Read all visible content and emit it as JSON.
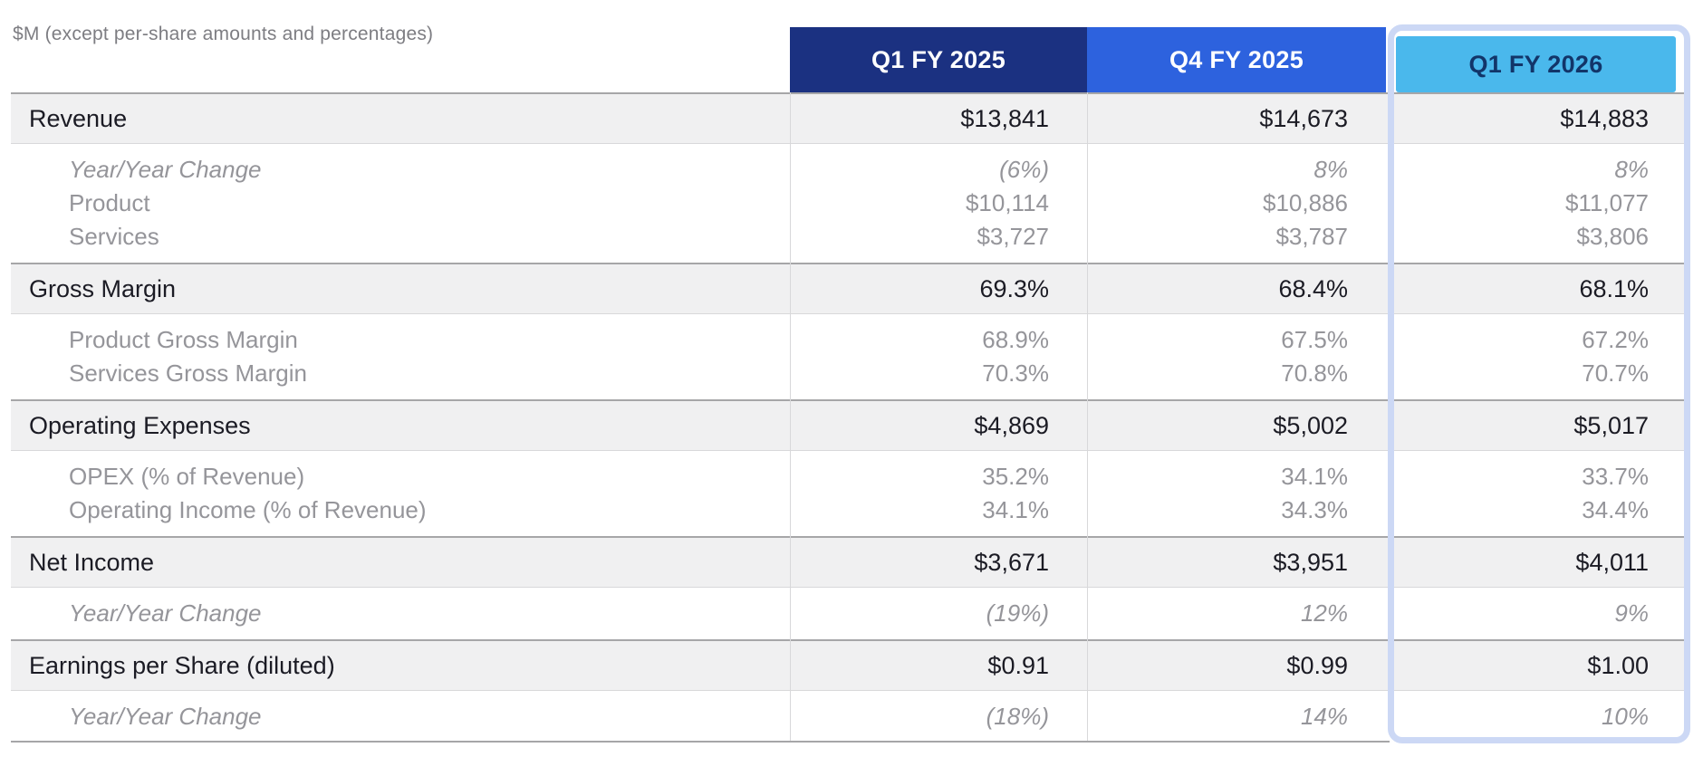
{
  "chart_data": {
    "type": "table",
    "units_note": "$M (except per-share amounts and percentages)",
    "legend_position": "none",
    "highlighted_column": "Q1 FY 2026",
    "columns": [
      {
        "label": "Q1 FY 2025",
        "highlighted": false
      },
      {
        "label": "Q4 FY 2025",
        "highlighted": false
      },
      {
        "label": "Q1 FY 2026",
        "highlighted": true
      }
    ],
    "rows": [
      {
        "label": "Revenue",
        "kind": "primary",
        "italic": false,
        "values": [
          "$13,841",
          "$14,673",
          "$14,883"
        ]
      },
      {
        "label": "Year/Year Change",
        "kind": "sub",
        "italic": true,
        "values": [
          "(6%)",
          "8%",
          "8%"
        ]
      },
      {
        "label": "Product",
        "kind": "sub",
        "italic": false,
        "values": [
          "$10,114",
          "$10,886",
          "$11,077"
        ]
      },
      {
        "label": "Services",
        "kind": "sub",
        "italic": false,
        "values": [
          "$3,727",
          "$3,787",
          "$3,806"
        ]
      },
      {
        "label": "Gross Margin",
        "kind": "primary",
        "italic": false,
        "values": [
          "69.3%",
          "68.4%",
          "68.1%"
        ]
      },
      {
        "label": "Product Gross Margin",
        "kind": "sub",
        "italic": false,
        "values": [
          "68.9%",
          "67.5%",
          "67.2%"
        ]
      },
      {
        "label": "Services Gross Margin",
        "kind": "sub",
        "italic": false,
        "values": [
          "70.3%",
          "70.8%",
          "70.7%"
        ]
      },
      {
        "label": "Operating Expenses",
        "kind": "primary",
        "italic": false,
        "values": [
          "$4,869",
          "$5,002",
          "$5,017"
        ]
      },
      {
        "label": "OPEX (% of Revenue)",
        "kind": "sub",
        "italic": false,
        "values": [
          "35.2%",
          "34.1%",
          "33.7%"
        ]
      },
      {
        "label": "Operating Income (% of Revenue)",
        "kind": "sub",
        "italic": false,
        "values": [
          "34.1%",
          "34.3%",
          "34.4%"
        ]
      },
      {
        "label": "Net Income",
        "kind": "primary",
        "italic": false,
        "values": [
          "$3,671",
          "$3,951",
          "$4,011"
        ]
      },
      {
        "label": "Year/Year Change",
        "kind": "sub",
        "italic": true,
        "values": [
          "(19%)",
          "12%",
          "9%"
        ]
      },
      {
        "label": "Earnings per Share (diluted)",
        "kind": "primary",
        "italic": false,
        "values": [
          "$0.91",
          "$0.99",
          "$1.00"
        ]
      },
      {
        "label": "Year/Year Change",
        "kind": "sub",
        "italic": true,
        "values": [
          "(18%)",
          "14%",
          "10%"
        ]
      }
    ]
  },
  "colors": {
    "page_bg": "#ffffff",
    "header1_bg": "#1b3181",
    "header2_bg": "#2d62de",
    "header3_bg": "#4ab8ec",
    "header_text_light": "#ffffff",
    "header3_text": "#123569",
    "highlight_ring": "#ccd8f5",
    "row_band_bg": "#f0f0f1",
    "section_divider": "#a6a6a8",
    "grid_line": "#d8d8da",
    "text_primary": "#1b1b24",
    "text_secondary": "#95959a",
    "note_text": "#7d7d82"
  }
}
